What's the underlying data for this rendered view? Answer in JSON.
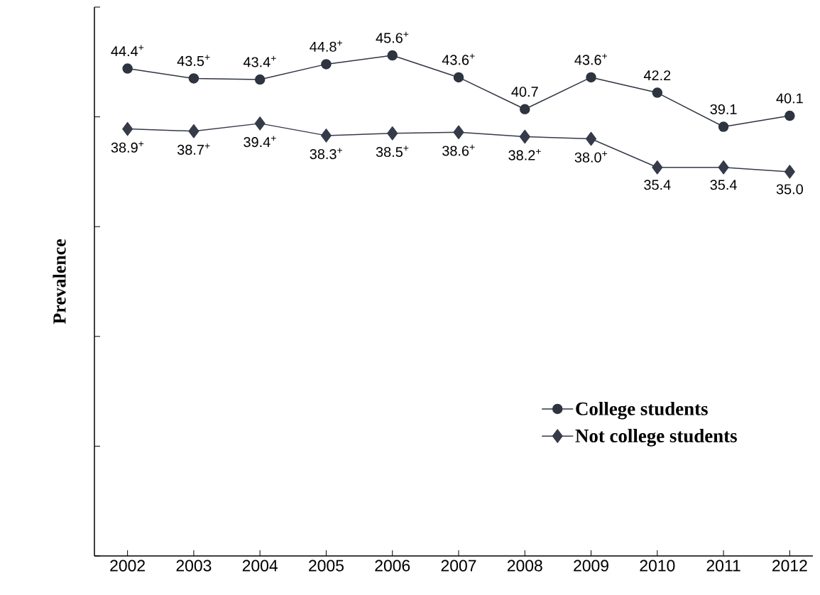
{
  "chart_data": {
    "type": "line",
    "ylabel": "Prevalence",
    "categories": [
      "2002",
      "2003",
      "2004",
      "2005",
      "2006",
      "2007",
      "2008",
      "2009",
      "2010",
      "2011",
      "2012"
    ],
    "series": [
      {
        "name": "College students",
        "color": "#2e3440",
        "marker": "circle",
        "values": [
          44.4,
          43.5,
          43.4,
          44.8,
          45.6,
          43.6,
          40.7,
          43.6,
          42.2,
          39.1,
          40.1
        ],
        "value_labels": [
          "44.4$^{+}$",
          "43.5$^{+}$",
          "43.4$^{+}$",
          "44.8$^{+}$",
          "45.6$^{+}$",
          "43.6$^{+}$",
          "40.7",
          "43.6$^{+}$",
          "42.2",
          "39.1",
          "40.1"
        ]
      },
      {
        "name": "Not college students",
        "color": "#363b4a",
        "marker": "diamond",
        "values": [
          38.9,
          38.7,
          39.4,
          38.3,
          38.5,
          38.6,
          38.2,
          38.0,
          35.4,
          35.4,
          35.0
        ],
        "value_labels": [
          "38.9$^{+}$",
          "38.7$^{+}$",
          "39.4$^{+}$",
          "38.3$^{+}$",
          "38.5$^{+}$",
          "38.6$^{+}$",
          "38.2$^{+}$",
          "38.0$^{+}$",
          "35.4",
          "35.4",
          "35.0"
        ]
      }
    ],
    "ylim": [
      0,
      50
    ],
    "yticks": [
      {
        "value": 0,
        "label": null
      },
      {
        "value": 10,
        "label": null
      },
      {
        "value": 20,
        "label": null
      },
      {
        "value": 30,
        "label": null
      },
      {
        "value": 40,
        "label": null
      },
      {
        "value": 50,
        "label": null
      }
    ],
    "tick_labels": "x",
    "grid": false,
    "legend": "bottom right",
    "line_style": "solid"
  }
}
